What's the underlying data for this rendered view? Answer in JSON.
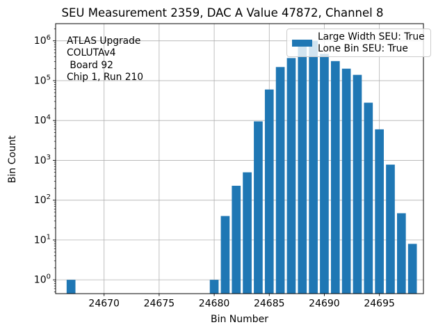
{
  "chart_data": {
    "type": "bar",
    "title": "SEU Measurement 2359, DAC A Value 47872, Channel 8",
    "xlabel": "Bin Number",
    "ylabel": "Bin Count",
    "x": [
      24667,
      24680,
      24681,
      24682,
      24683,
      24684,
      24685,
      24686,
      24687,
      24688,
      24689,
      24690,
      24691,
      24692,
      24693,
      24694,
      24695,
      24696,
      24697,
      24698
    ],
    "values": [
      1,
      1,
      40,
      230,
      500,
      9500,
      60000,
      220000,
      370000,
      800000,
      1000000,
      470000,
      310000,
      200000,
      140000,
      28000,
      6000,
      780,
      47,
      8
    ],
    "bar_width": 0.8,
    "bar_color": "#1f77b4",
    "y_scale": "log",
    "grid": true,
    "grid_color": "#b0b0b0",
    "spine_color": "#000000",
    "xlim": [
      24665.6,
      24699.0
    ],
    "ylim": [
      0.45,
      2700000
    ],
    "x_ticks": [
      24670,
      24675,
      24680,
      24685,
      24690,
      24695
    ],
    "y_tick_exponents": [
      0,
      1,
      2,
      3,
      4,
      5,
      6
    ],
    "legend": {
      "position": "upper right",
      "swatch_color": "#1f77b4",
      "entries": [
        "Large Width SEU: True",
        "Lone Bin SEU: True"
      ]
    },
    "annotations": [
      "ATLAS Upgrade",
      "COLUTAv4",
      " Board 92",
      "Chip 1, Run 210"
    ]
  }
}
